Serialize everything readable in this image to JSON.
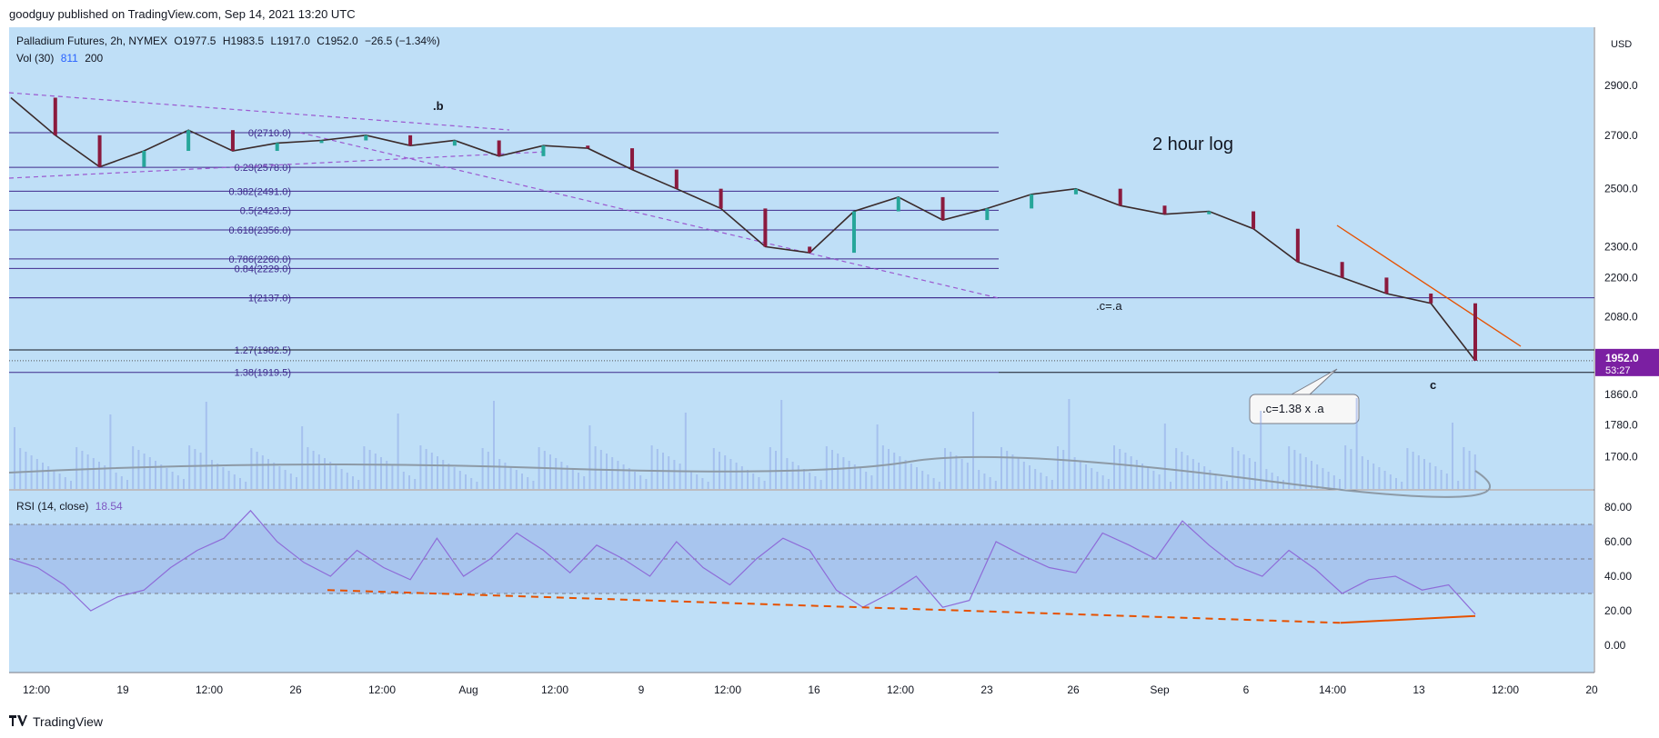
{
  "publisher_line": "goodguy published on TradingView.com, Sep 14, 2021 13:20 UTC",
  "footer": {
    "brand": "TradingView",
    "logo": "TV-logo"
  },
  "legend": {
    "main": "Palladium Futures, 2h, NYMEX",
    "open": "O1977.5",
    "high": "H1983.5",
    "low": "L1917.0",
    "close": "C1952.0",
    "change": "−26.5 (−1.34%)",
    "vol_label": "Vol (30)",
    "vol_value": "811",
    "vol_ma": "200",
    "rsi_label": "RSI (14, close)",
    "rsi_value": "18.54"
  },
  "colors": {
    "background": "#bfdff7",
    "rsi_band": "#a8c5ee",
    "candle_up": "#26a69a",
    "candle_down": "#8b1a3e",
    "fib_line": "#3f2a8c",
    "trend_dashed": "#9b59d0",
    "orange": "#e65100",
    "rsi_line": "#8e6cd8",
    "price_tag": "#7b1fa2"
  },
  "chart_data": {
    "type": "line",
    "title": "Palladium Futures, 2h, NYMEX",
    "scale": "log",
    "y_axis": {
      "unit": "USD",
      "ticks": [
        2900,
        2700,
        2500,
        2300,
        2200,
        2080,
        1952,
        1860,
        1780,
        1700
      ]
    },
    "x_axis": {
      "ticks": [
        "12:00",
        "19",
        "12:00",
        "26",
        "12:00",
        "Aug",
        "12:00",
        "9",
        "12:00",
        "16",
        "12:00",
        "23",
        "26",
        "Sep",
        "6",
        "14:00",
        "13",
        "12:00",
        "20"
      ]
    },
    "price_series": {
      "name": "Palladium Futures",
      "x": [
        "Jul 16",
        "Jul 19",
        "Jul 21",
        "Jul 23",
        "Jul 26",
        "Jul 28",
        "Jul 30",
        "Aug 2",
        "Aug 4",
        "Aug 6",
        "Aug 9",
        "Aug 11",
        "Aug 13",
        "Aug 16",
        "Aug 18",
        "Aug 19",
        "Aug 20",
        "Aug 21",
        "Aug 23",
        "Aug 24",
        "Aug 26",
        "Aug 28",
        "Aug 31",
        "Sep 1",
        "Sep 2",
        "Sep 4",
        "Sep 6",
        "Sep 7",
        "Sep 8",
        "Sep 9",
        "Sep 10",
        "Sep 11",
        "Sep 13",
        "Sep 14"
      ],
      "y": [
        2850,
        2700,
        2580,
        2640,
        2720,
        2640,
        2670,
        2680,
        2700,
        2660,
        2680,
        2620,
        2660,
        2650,
        2570,
        2500,
        2430,
        2300,
        2280,
        2420,
        2470,
        2390,
        2430,
        2480,
        2500,
        2440,
        2410,
        2420,
        2360,
        2250,
        2200,
        2150,
        2120,
        1952
      ]
    },
    "fibonacci_levels": [
      {
        "label": "0(2710.0)",
        "value": 2710.0
      },
      {
        "label": "0.23(2578.0)",
        "value": 2578.0
      },
      {
        "label": "0.382(2491.0)",
        "value": 2491.0
      },
      {
        "label": "0.5(2423.5)",
        "value": 2423.5
      },
      {
        "label": "0.618(2356.0)",
        "value": 2356.0
      },
      {
        "label": "0.786(2260.0)",
        "value": 2260.0
      },
      {
        "label": "0.84(2229.0)",
        "value": 2229.0
      },
      {
        "label": "1(2137.0)",
        "value": 2137.0
      },
      {
        "label": "1.27(1982.5)",
        "value": 1982.5
      },
      {
        "label": "1.38(1919.5)",
        "value": 1919.5
      }
    ],
    "last_price": {
      "value": "1952.0",
      "countdown": "53:27"
    },
    "annotations": [
      {
        "text": ".b"
      },
      {
        "text": "2 hour log"
      },
      {
        "text": ".c=.a"
      },
      {
        "text": "c"
      },
      {
        "text": ".c=1.38  x .a"
      }
    ],
    "volume_axis": {
      "ticks": []
    },
    "rsi": {
      "axis_ticks": [
        "80.00",
        "60.00",
        "40.00",
        "20.00",
        "0.00"
      ],
      "band": [
        30,
        70
      ],
      "values": [
        50,
        45,
        35,
        20,
        28,
        32,
        45,
        55,
        62,
        78,
        60,
        48,
        40,
        55,
        45,
        38,
        62,
        40,
        50,
        65,
        55,
        42,
        58,
        50,
        40,
        60,
        45,
        35,
        50,
        62,
        55,
        32,
        22,
        30,
        40,
        22,
        26,
        60,
        52,
        45,
        42,
        65,
        58,
        50,
        72,
        58,
        46,
        40,
        55,
        44,
        30,
        38,
        40,
        32,
        35,
        18
      ],
      "last": 18.54
    }
  }
}
